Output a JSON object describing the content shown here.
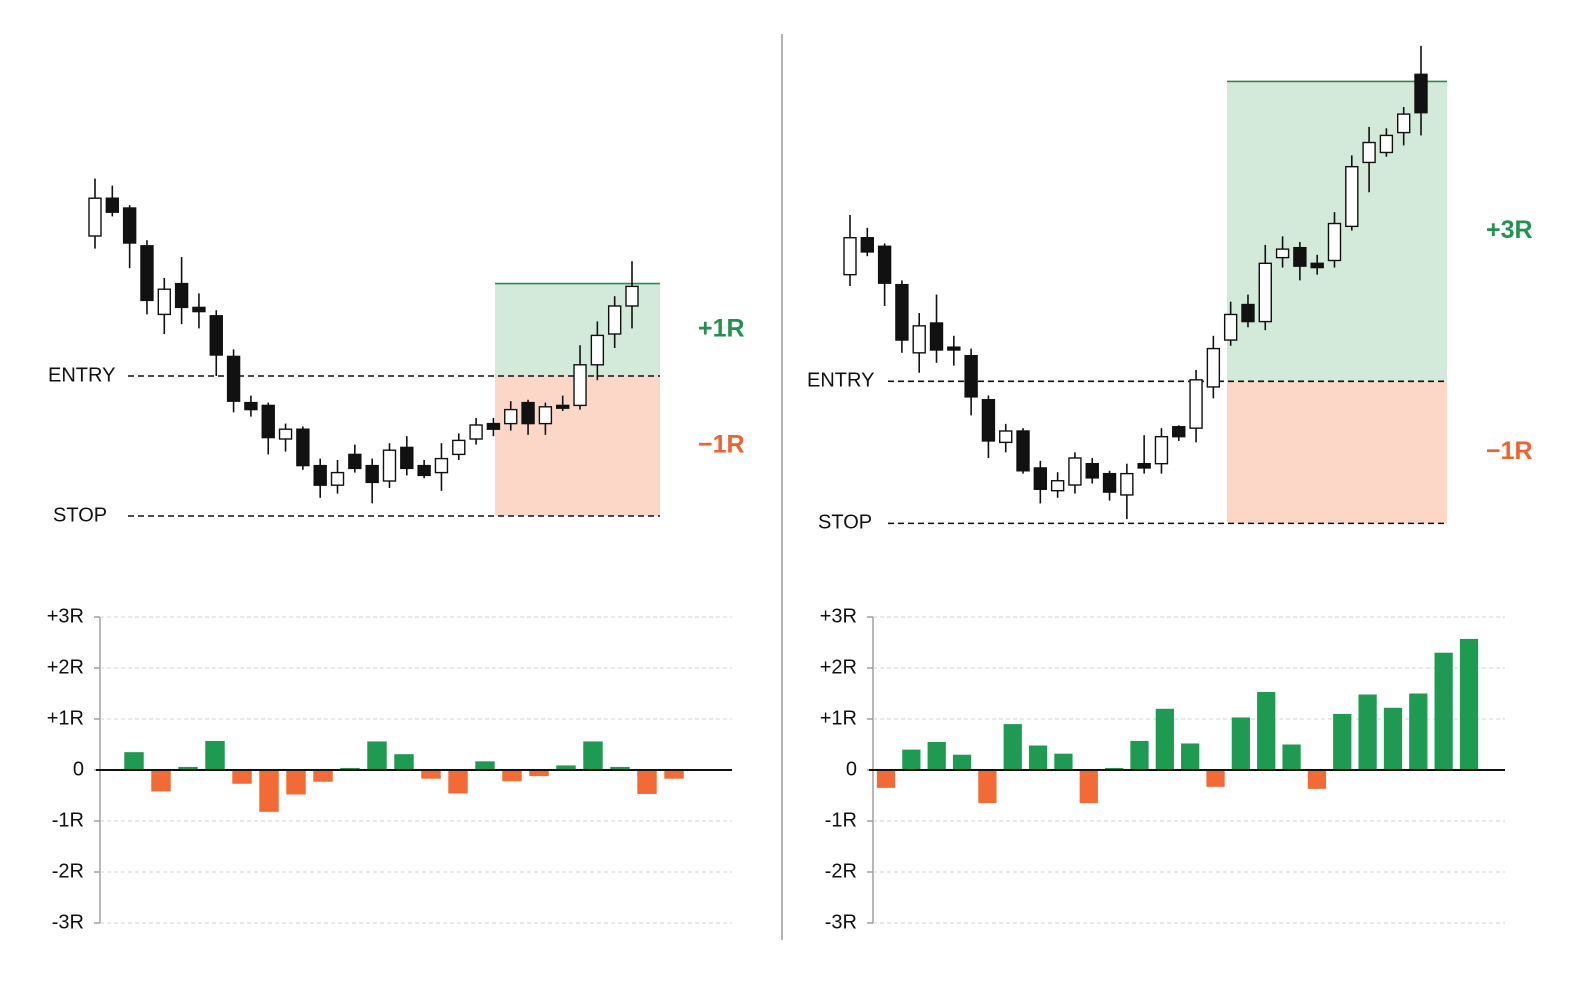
{
  "chart_data": [
    {
      "type": "candlestick",
      "ylim": [
        -1.3,
        2.4
      ],
      "entry": {
        "label": "ENTRY",
        "value": 0
      },
      "stop": {
        "label": "STOP",
        "value": -1
      },
      "target": 0.66,
      "reward_label": "+1R",
      "risk_label": "−1R",
      "colors": {
        "reward": "#d3eadb",
        "risk": "#fcd6c6",
        "target_line": "#2e8b4a",
        "reward_text": "#22924f",
        "risk_text": "#f0622e"
      },
      "open": [
        1.0,
        1.27,
        1.2,
        0.93,
        0.44,
        0.66,
        0.49,
        0.43,
        0.14,
        -0.19,
        -0.21,
        -0.45,
        -0.38,
        -0.64,
        -0.78,
        -0.56,
        -0.64,
        -0.75,
        -0.51,
        -0.64,
        -0.69,
        -0.56,
        -0.45,
        -0.34,
        -0.34,
        -0.19,
        -0.34,
        -0.21,
        -0.21,
        0.08,
        0.3,
        0.5
      ],
      "high": [
        1.41,
        1.36,
        1.22,
        0.97,
        0.7,
        0.85,
        0.59,
        0.47,
        0.19,
        -0.14,
        -0.19,
        -0.34,
        -0.36,
        -0.59,
        -0.6,
        -0.49,
        -0.59,
        -0.48,
        -0.43,
        -0.6,
        -0.48,
        -0.41,
        -0.3,
        -0.3,
        -0.18,
        -0.17,
        -0.19,
        -0.14,
        0.22,
        0.39,
        0.57,
        0.82
      ],
      "low": [
        0.91,
        1.14,
        0.77,
        0.44,
        0.3,
        0.37,
        0.34,
        0.0,
        -0.26,
        -0.29,
        -0.56,
        -0.54,
        -0.67,
        -0.87,
        -0.84,
        -0.69,
        -0.91,
        -0.8,
        -0.71,
        -0.73,
        -0.82,
        -0.6,
        -0.49,
        -0.43,
        -0.39,
        -0.42,
        -0.42,
        -0.25,
        -0.24,
        -0.03,
        0.2,
        0.34
      ],
      "close": [
        1.27,
        1.17,
        0.95,
        0.54,
        0.62,
        0.49,
        0.46,
        0.15,
        -0.18,
        -0.24,
        -0.44,
        -0.38,
        -0.64,
        -0.78,
        -0.69,
        -0.66,
        -0.76,
        -0.53,
        -0.66,
        -0.71,
        -0.59,
        -0.46,
        -0.35,
        -0.38,
        -0.24,
        -0.34,
        -0.22,
        -0.23,
        0.08,
        0.29,
        0.5,
        0.64
      ]
    },
    {
      "type": "bar",
      "ylim": [
        -3,
        3
      ],
      "yticks": [
        {
          "value": 3,
          "label": "+3R"
        },
        {
          "value": 2,
          "label": "+2R"
        },
        {
          "value": 1,
          "label": "+1R"
        },
        0,
        {
          "value": -1,
          "label": "-1R"
        },
        {
          "value": -2,
          "label": "-2R"
        },
        {
          "value": -3,
          "label": "-3R"
        }
      ],
      "grid": true,
      "colors": {
        "positive": "#1f9a53",
        "negative": "#f26a35"
      },
      "values": [
        0.35,
        -0.42,
        0.06,
        0.57,
        -0.27,
        -0.82,
        -0.48,
        -0.23,
        0.04,
        0.56,
        0.31,
        -0.17,
        -0.46,
        0.17,
        -0.22,
        -0.12,
        0.09,
        0.56,
        0.06,
        -0.47,
        -0.17
      ]
    },
    {
      "type": "candlestick",
      "ylim": [
        -1.3,
        2.5
      ],
      "entry": {
        "label": "ENTRY",
        "value": 0
      },
      "stop": {
        "label": "STOP",
        "value": -1
      },
      "target": 2.11,
      "reward_label": "+3R",
      "risk_label": "−1R",
      "colors": {
        "reward": "#d3eadb",
        "risk": "#fcd6c6",
        "target_line": "#2e8b4a",
        "reward_text": "#22924f",
        "risk_text": "#f0622e"
      },
      "open": [
        0.75,
        1.01,
        0.95,
        0.68,
        0.2,
        0.41,
        0.24,
        0.18,
        -0.13,
        -0.43,
        -0.35,
        -0.61,
        -0.77,
        -0.73,
        -0.58,
        -0.65,
        -0.8,
        -0.58,
        -0.58,
        -0.32,
        -0.33,
        -0.04,
        0.29,
        0.54,
        0.42,
        0.87,
        0.94,
        0.83,
        0.85,
        1.09,
        1.54,
        1.61,
        1.75,
        2.16
      ],
      "high": [
        1.17,
        1.08,
        0.97,
        0.71,
        0.48,
        0.61,
        0.32,
        0.23,
        -0.1,
        -0.3,
        -0.33,
        -0.56,
        -0.64,
        -0.5,
        -0.54,
        -0.63,
        -0.58,
        -0.38,
        -0.33,
        -0.31,
        0.08,
        0.32,
        0.56,
        0.61,
        0.96,
        1.02,
        0.98,
        0.89,
        1.19,
        1.59,
        1.79,
        1.78,
        1.93,
        2.36
      ],
      "low": [
        0.67,
        0.88,
        0.53,
        0.2,
        0.06,
        0.13,
        0.11,
        -0.24,
        -0.54,
        -0.5,
        -0.65,
        -0.86,
        -0.82,
        -0.79,
        -0.72,
        -0.84,
        -0.97,
        -0.65,
        -0.65,
        -0.42,
        -0.43,
        -0.12,
        0.25,
        0.38,
        0.36,
        0.8,
        0.71,
        0.75,
        0.8,
        1.06,
        1.33,
        1.58,
        1.66,
        1.73
      ],
      "close": [
        1.01,
        0.91,
        0.69,
        0.29,
        0.39,
        0.22,
        0.22,
        -0.11,
        -0.42,
        -0.35,
        -0.63,
        -0.76,
        -0.7,
        -0.54,
        -0.68,
        -0.78,
        -0.65,
        -0.61,
        -0.39,
        -0.39,
        0.01,
        0.23,
        0.47,
        0.42,
        0.83,
        0.93,
        0.81,
        0.8,
        1.11,
        1.51,
        1.68,
        1.73,
        1.88,
        1.89
      ]
    },
    {
      "type": "bar",
      "ylim": [
        -3,
        3
      ],
      "yticks": [
        {
          "value": 3,
          "label": "+3R"
        },
        {
          "value": 2,
          "label": "+2R"
        },
        {
          "value": 1,
          "label": "+1R"
        },
        0,
        {
          "value": -1,
          "label": "-1R"
        },
        {
          "value": -2,
          "label": "-2R"
        },
        {
          "value": -3,
          "label": "-3R"
        }
      ],
      "grid": true,
      "colors": {
        "positive": "#1f9a53",
        "negative": "#f26a35"
      },
      "values": [
        -0.35,
        0.4,
        0.55,
        0.3,
        -0.65,
        0.9,
        0.48,
        0.32,
        -0.65,
        0.04,
        0.57,
        1.2,
        0.52,
        -0.33,
        1.03,
        1.53,
        0.5,
        -0.37,
        1.1,
        1.48,
        1.22,
        1.5,
        2.3,
        2.57
      ]
    }
  ]
}
